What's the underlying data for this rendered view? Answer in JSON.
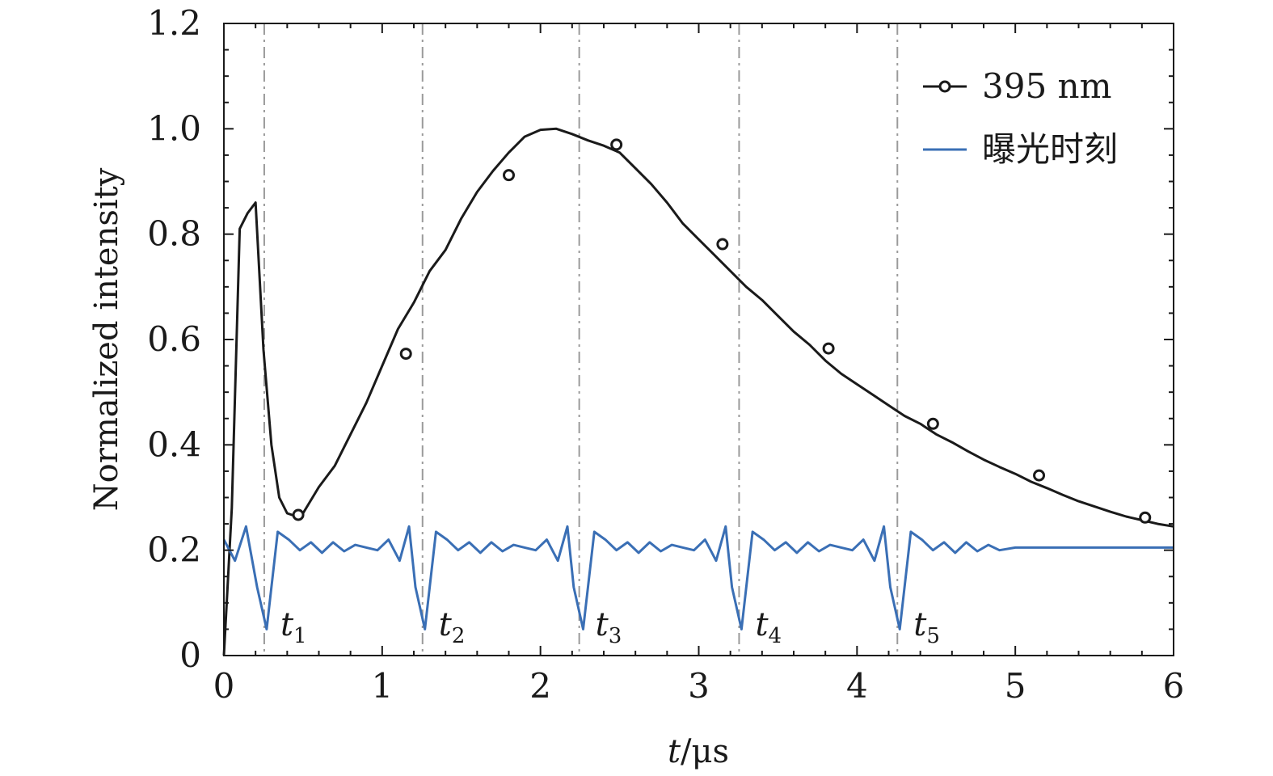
{
  "chart_data": {
    "type": "line",
    "title": "",
    "xlabel_var": "t",
    "xlabel_unit": "/μs",
    "ylabel": "Normalized intensity",
    "xlim": [
      0,
      6
    ],
    "ylim": [
      0,
      1.2
    ],
    "xticks": [
      "0",
      "1",
      "2",
      "3",
      "4",
      "5",
      "6"
    ],
    "yticks": [
      "0",
      "0.2",
      "0.4",
      "0.6",
      "0.8",
      "1.0",
      "1.2"
    ],
    "xtick_values": [
      0,
      1,
      2,
      3,
      4,
      5,
      6
    ],
    "ytick_values": [
      0,
      0.2,
      0.4,
      0.6,
      0.8,
      1.0,
      1.2
    ],
    "legend_position": "top-right",
    "grid": false,
    "series": [
      {
        "name": "395 nm",
        "color": "#1a1a1a",
        "marker": "open-circle",
        "x": [
          0,
          0.05,
          0.1,
          0.15,
          0.2,
          0.25,
          0.3,
          0.35,
          0.4,
          0.45,
          0.5,
          0.6,
          0.7,
          0.8,
          0.9,
          1.0,
          1.1,
          1.2,
          1.3,
          1.4,
          1.5,
          1.6,
          1.7,
          1.8,
          1.9,
          2.0,
          2.1,
          2.2,
          2.3,
          2.4,
          2.5,
          2.6,
          2.7,
          2.8,
          2.9,
          3.0,
          3.1,
          3.2,
          3.3,
          3.4,
          3.5,
          3.6,
          3.7,
          3.8,
          3.9,
          4.0,
          4.1,
          4.2,
          4.3,
          4.4,
          4.5,
          4.6,
          4.7,
          4.8,
          4.9,
          5.0,
          5.1,
          5.2,
          5.3,
          5.4,
          5.5,
          5.6,
          5.7,
          5.8,
          5.9,
          6.0
        ],
        "y": [
          0,
          0.28,
          0.81,
          0.84,
          0.86,
          0.58,
          0.4,
          0.3,
          0.27,
          0.265,
          0.27,
          0.32,
          0.36,
          0.42,
          0.48,
          0.55,
          0.62,
          0.67,
          0.73,
          0.77,
          0.83,
          0.88,
          0.92,
          0.955,
          0.985,
          0.998,
          1.0,
          0.99,
          0.978,
          0.968,
          0.955,
          0.925,
          0.895,
          0.86,
          0.82,
          0.79,
          0.76,
          0.73,
          0.7,
          0.675,
          0.645,
          0.615,
          0.59,
          0.56,
          0.535,
          0.515,
          0.495,
          0.475,
          0.455,
          0.44,
          0.42,
          0.405,
          0.388,
          0.372,
          0.358,
          0.345,
          0.33,
          0.318,
          0.305,
          0.293,
          0.283,
          0.273,
          0.264,
          0.257,
          0.25,
          0.245
        ],
        "marker_x": [
          0.47,
          1.15,
          1.8,
          2.48,
          3.15,
          3.82,
          4.48,
          5.15,
          5.82
        ],
        "marker_y": [
          0.267,
          0.573,
          0.912,
          0.97,
          0.781,
          0.583,
          0.44,
          0.342,
          0.262
        ]
      },
      {
        "name": "曝光时刻",
        "color": "#3a6fb5",
        "marker": "none",
        "x": [
          0,
          0.07,
          0.14,
          0.21,
          0.27,
          0.34,
          0.41,
          0.48,
          0.55,
          0.62,
          0.69,
          0.76,
          0.83,
          0.9,
          0.97,
          1.04,
          1.11,
          1.17,
          1.21,
          1.27,
          1.34,
          1.41,
          1.48,
          1.55,
          1.62,
          1.69,
          1.76,
          1.83,
          1.9,
          1.97,
          2.04,
          2.11,
          2.17,
          2.21,
          2.27,
          2.34,
          2.41,
          2.48,
          2.55,
          2.62,
          2.69,
          2.76,
          2.83,
          2.9,
          2.97,
          3.04,
          3.11,
          3.17,
          3.21,
          3.27,
          3.34,
          3.41,
          3.48,
          3.55,
          3.62,
          3.69,
          3.76,
          3.83,
          3.9,
          3.97,
          4.04,
          4.11,
          4.17,
          4.21,
          4.27,
          4.34,
          4.41,
          4.48,
          4.55,
          4.62,
          4.69,
          4.76,
          4.83,
          4.9,
          5.0,
          5.5,
          6.0
        ],
        "y": [
          0.22,
          0.18,
          0.245,
          0.13,
          0.05,
          0.235,
          0.22,
          0.2,
          0.215,
          0.195,
          0.215,
          0.198,
          0.21,
          0.205,
          0.2,
          0.22,
          0.18,
          0.245,
          0.13,
          0.05,
          0.235,
          0.22,
          0.2,
          0.215,
          0.195,
          0.215,
          0.198,
          0.21,
          0.205,
          0.2,
          0.22,
          0.18,
          0.245,
          0.13,
          0.05,
          0.235,
          0.22,
          0.2,
          0.215,
          0.195,
          0.215,
          0.198,
          0.21,
          0.205,
          0.2,
          0.22,
          0.18,
          0.245,
          0.13,
          0.05,
          0.235,
          0.22,
          0.2,
          0.215,
          0.195,
          0.215,
          0.198,
          0.21,
          0.205,
          0.2,
          0.22,
          0.18,
          0.245,
          0.13,
          0.05,
          0.235,
          0.22,
          0.2,
          0.215,
          0.195,
          0.215,
          0.198,
          0.21,
          0.2,
          0.205,
          0.205,
          0.205
        ]
      }
    ],
    "exposure_lines": [
      {
        "x": 0.255,
        "label": "t",
        "sub": "1"
      },
      {
        "x": 1.255,
        "label": "t",
        "sub": "2"
      },
      {
        "x": 2.245,
        "label": "t",
        "sub": "3"
      },
      {
        "x": 3.255,
        "label": "t",
        "sub": "4"
      },
      {
        "x": 4.255,
        "label": "t",
        "sub": "5"
      }
    ]
  }
}
